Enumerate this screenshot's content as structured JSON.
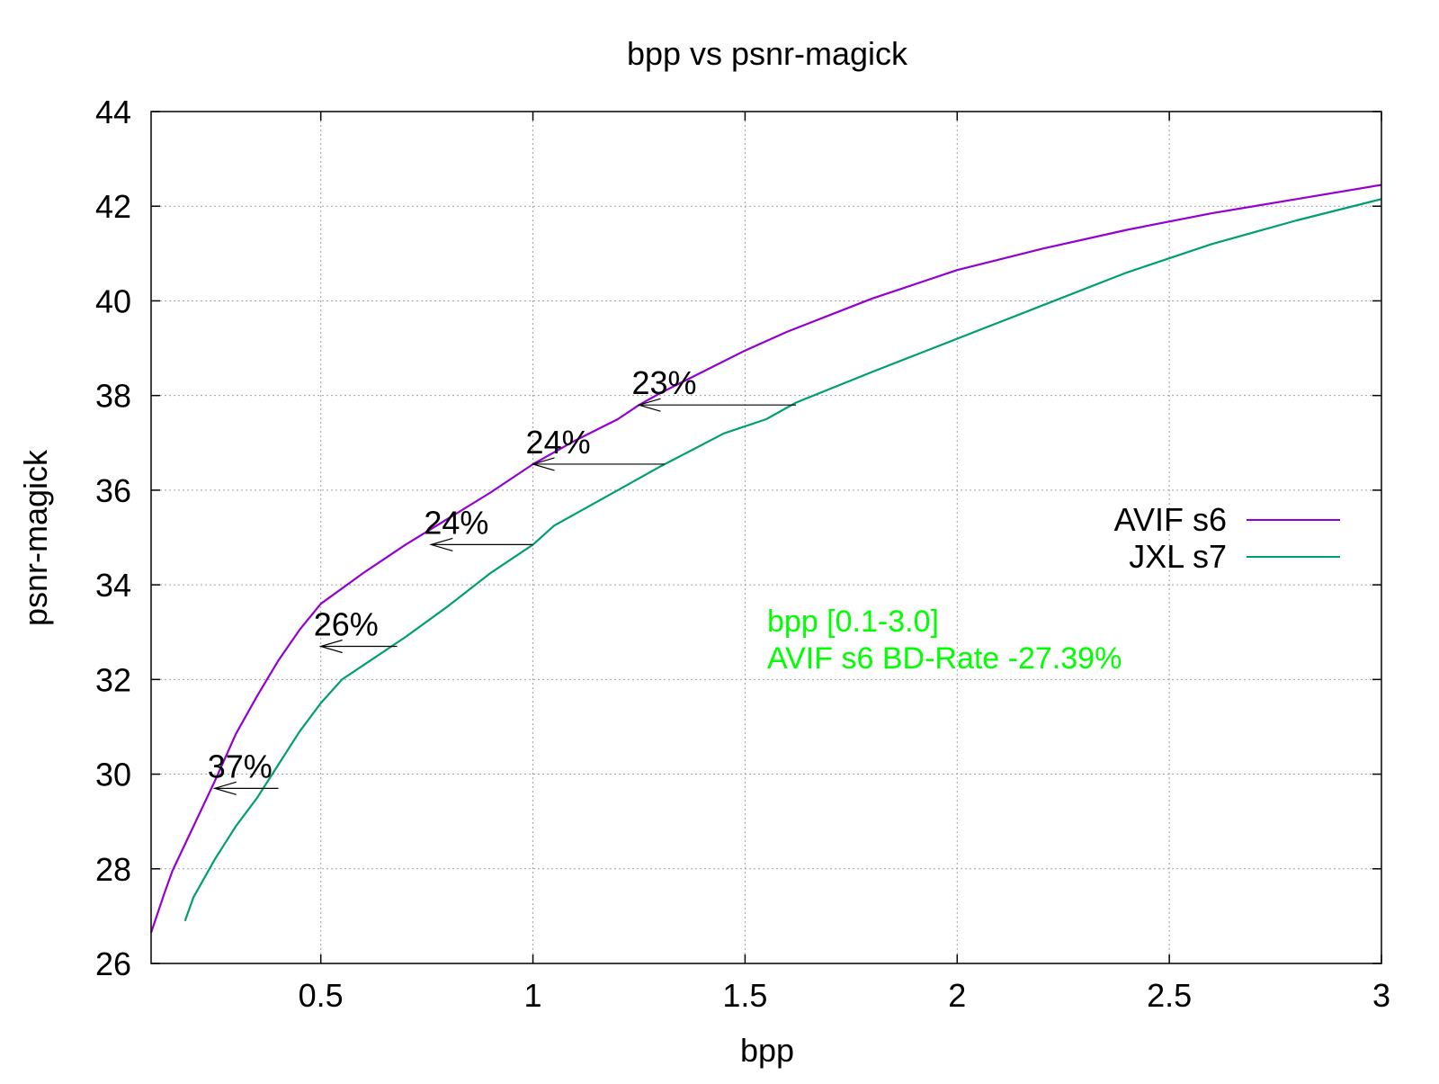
{
  "chart_data": {
    "type": "line",
    "title": "bpp vs psnr-magick",
    "xlabel": "bpp",
    "ylabel": "psnr-magick",
    "xlim": [
      0.1,
      3.0
    ],
    "ylim": [
      26,
      44
    ],
    "x_ticks": [
      0.5,
      1,
      1.5,
      2,
      2.5,
      3
    ],
    "x_tick_labels": [
      "0.5",
      "1",
      "1.5",
      "2",
      "2.5",
      "3"
    ],
    "y_ticks": [
      26,
      28,
      30,
      32,
      34,
      36,
      38,
      40,
      42,
      44
    ],
    "y_tick_labels": [
      "26",
      "28",
      "30",
      "32",
      "34",
      "36",
      "38",
      "40",
      "42",
      "44"
    ],
    "grid": true,
    "legend_position": "right",
    "series": [
      {
        "name": "AVIF s6",
        "color": "#9400d3",
        "x": [
          0.1,
          0.13,
          0.15,
          0.2,
          0.25,
          0.3,
          0.35,
          0.4,
          0.45,
          0.5,
          0.6,
          0.7,
          0.8,
          0.9,
          1.0,
          1.1,
          1.2,
          1.25,
          1.3,
          1.4,
          1.5,
          1.6,
          1.7,
          1.8,
          1.9,
          2.0,
          2.2,
          2.4,
          2.6,
          2.8,
          3.0
        ],
        "y": [
          26.65,
          27.45,
          27.95,
          28.9,
          29.85,
          30.85,
          31.65,
          32.4,
          33.05,
          33.6,
          34.25,
          34.85,
          35.4,
          35.95,
          36.55,
          37.05,
          37.5,
          37.8,
          38.05,
          38.5,
          38.95,
          39.35,
          39.7,
          40.05,
          40.35,
          40.65,
          41.1,
          41.5,
          41.85,
          42.15,
          42.45
        ]
      },
      {
        "name": "JXL s7",
        "color": "#009e73",
        "x": [
          0.18,
          0.2,
          0.25,
          0.3,
          0.35,
          0.4,
          0.45,
          0.5,
          0.55,
          0.6,
          0.7,
          0.8,
          0.9,
          1.0,
          1.05,
          1.1,
          1.2,
          1.3,
          1.45,
          1.55,
          1.62,
          1.8,
          2.0,
          2.2,
          2.4,
          2.6,
          2.8,
          3.0
        ],
        "y": [
          26.9,
          27.4,
          28.2,
          28.9,
          29.5,
          30.2,
          30.9,
          31.5,
          32.0,
          32.3,
          32.9,
          33.55,
          34.25,
          34.85,
          35.25,
          35.5,
          36.0,
          36.5,
          37.2,
          37.5,
          37.85,
          38.5,
          39.2,
          39.9,
          40.6,
          41.2,
          41.7,
          42.15
        ]
      }
    ],
    "annotations": [
      {
        "text": "37%",
        "x_from": 0.4,
        "x_to": 0.25,
        "y": 29.7
      },
      {
        "text": "26%",
        "x_from": 0.68,
        "x_to": 0.5,
        "y": 32.7
      },
      {
        "text": "24%",
        "x_from": 1.0,
        "x_to": 0.76,
        "y": 34.85
      },
      {
        "text": "24%",
        "x_from": 1.31,
        "x_to": 1.0,
        "y": 36.55
      },
      {
        "text": "23%",
        "x_from": 1.62,
        "x_to": 1.25,
        "y": 37.8
      }
    ],
    "notes": {
      "line1": "bpp [0.1-3.0]",
      "line2": "AVIF s6 BD-Rate -27.39%",
      "color": "#00ff00"
    }
  }
}
